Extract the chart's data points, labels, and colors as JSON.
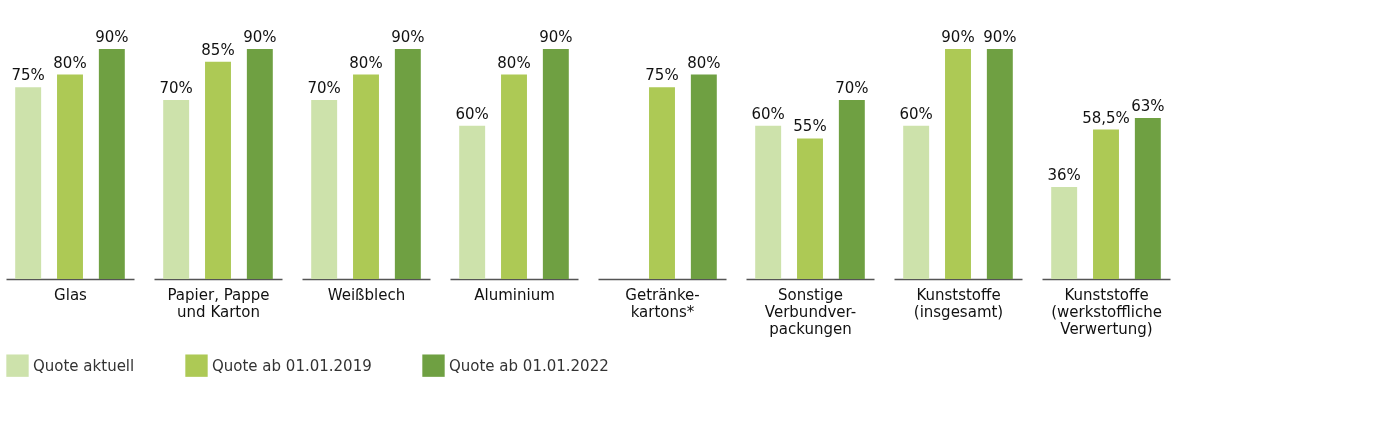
{
  "chart_data": {
    "type": "bar",
    "categories": [
      "Glas",
      "Papier, Pappe\nund Karton",
      "Weißblech",
      "Aluminium",
      "Getränke-\nkartons*",
      "Sonstige\nVerbundver-\npackungen",
      "Kunststoffe\n(insgesamt)",
      "Kunststoffe\n(werkstoffliche\nVerwertung)"
    ],
    "series": [
      {
        "name": "Quote aktuell",
        "color": "#cde2ab",
        "values": [
          75,
          70,
          70,
          60,
          null,
          60,
          60,
          36
        ],
        "value_labels": [
          "75%",
          "70%",
          "70%",
          "60%",
          null,
          "60%",
          "60%",
          "36%"
        ]
      },
      {
        "name": "Quote ab 01.01.2019",
        "color": "#adc955",
        "values": [
          80,
          85,
          80,
          80,
          75,
          55,
          90,
          58.5
        ],
        "value_labels": [
          "80%",
          "85%",
          "80%",
          "80%",
          "75%",
          "55%",
          "90%",
          "58,5%"
        ]
      },
      {
        "name": "Quote ab 01.01.2022",
        "color": "#6fa042",
        "values": [
          90,
          90,
          90,
          90,
          80,
          70,
          90,
          63
        ],
        "value_labels": [
          "90%",
          "90%",
          "90%",
          "90%",
          "80%",
          "70%",
          "90%",
          "63%"
        ]
      }
    ],
    "legend": "bottom",
    "grid": false
  }
}
